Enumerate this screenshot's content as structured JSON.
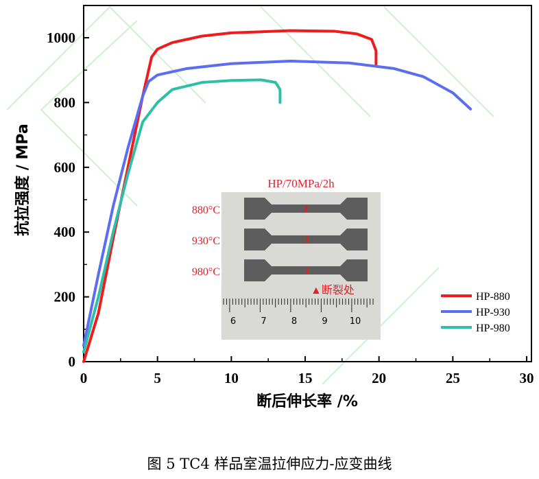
{
  "chart_data": {
    "type": "line",
    "xlabel": "断后伸长率 /%",
    "ylabel": "抗拉强度 / MPa",
    "xlim": [
      0,
      30
    ],
    "ylim": [
      0,
      1100
    ],
    "xticks": [
      0,
      5,
      10,
      15,
      20,
      25,
      30
    ],
    "yticks": [
      0,
      200,
      400,
      600,
      800,
      1000
    ],
    "legend_position": "bottom-right",
    "series": [
      {
        "name": "HP-880",
        "color": "#ee1c1c",
        "x": [
          0,
          1,
          2,
          3,
          4,
          4.6,
          5,
          6,
          8,
          10,
          14,
          17,
          18.5,
          19.5,
          19.8,
          19.8
        ],
        "y": [
          0,
          150,
          380,
          600,
          820,
          940,
          965,
          985,
          1005,
          1015,
          1022,
          1020,
          1012,
          995,
          960,
          915
        ]
      },
      {
        "name": "HP-930",
        "color": "#5b6ef2",
        "x": [
          0,
          1,
          2,
          3,
          4,
          4.4,
          5,
          7,
          10,
          14,
          18,
          21,
          23,
          25,
          26.2
        ],
        "y": [
          50,
          270,
          480,
          660,
          820,
          865,
          885,
          905,
          920,
          928,
          922,
          905,
          880,
          830,
          780
        ]
      },
      {
        "name": "HP-980",
        "color": "#2ebfa8",
        "x": [
          0,
          1,
          2,
          3,
          4,
          5,
          6,
          8,
          10,
          12,
          13,
          13.3,
          13.3
        ],
        "y": [
          30,
          200,
          400,
          580,
          740,
          800,
          840,
          862,
          868,
          870,
          862,
          840,
          800
        ]
      }
    ]
  },
  "inset": {
    "title": "HP/70MPa/2h",
    "labels": [
      "880°C",
      "930°C",
      "980°C"
    ],
    "fracture_label": "断裂处",
    "ruler_ticks": [
      "6",
      "7",
      "8",
      "9",
      "10"
    ]
  },
  "caption": "图 5    TC4 样品室温拉伸应力-应变曲线"
}
